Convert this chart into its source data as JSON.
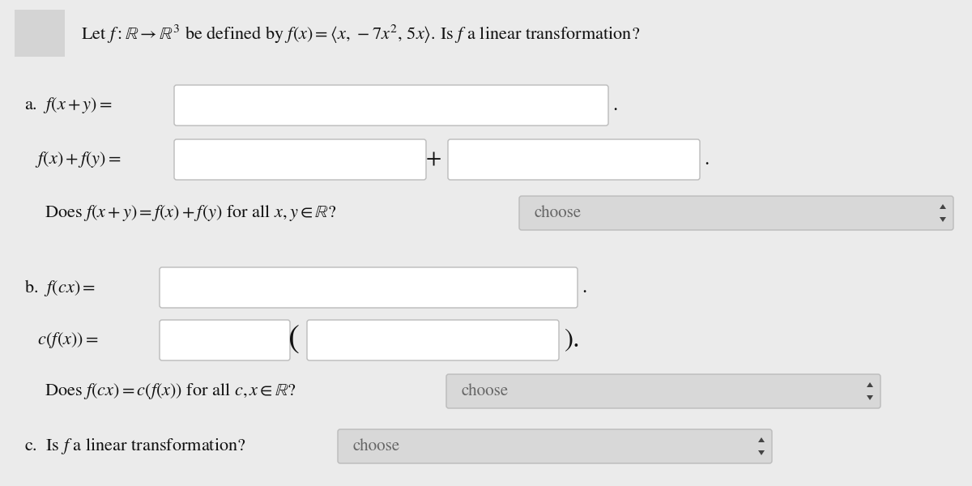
{
  "bg_color": "#ebebeb",
  "title_box_color": "#d4d4d4",
  "input_box_color": "#ffffff",
  "dropdown_box_color": "#d8d8d8",
  "text_color": "#111111",
  "title_text": "Let $f : \\mathbb{R} \\to \\mathbb{R}^3$ be defined by $f(x) = \\langle x,\\,-7x^2,\\,5x\\rangle$. Is $f$ a linear transformation?",
  "label_a": "a.  $f(x + y) =$",
  "label_fx_fy": "   $f(x) + f(y) =$",
  "label_does_a": "Does $f(x + y) = f(x) + f(y)$ for all $x, y \\in \\mathbb{R}$?",
  "label_b": "b.  $f(cx) =$",
  "label_cfx": "   $c(f(x)) =$",
  "label_does_b": "Does $f(cx) = c(f(x))$ for all $c, x \\in \\mathbb{R}$?",
  "label_c": "c.  Is $f$ a linear transformation?",
  "choose_text": "choose",
  "font_size_title": 16,
  "font_size_body": 16,
  "font_size_choose": 15,
  "arrow_color": "#444444"
}
